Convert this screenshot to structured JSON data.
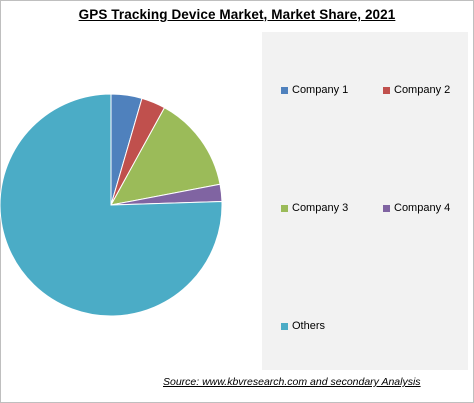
{
  "chart_data": {
    "type": "pie",
    "title": "GPS Tracking Device Market, Market Share, 2021",
    "series": [
      {
        "name": "Company 1",
        "value": 4.5,
        "color": "#4f81bd"
      },
      {
        "name": "Company 2",
        "value": 3.5,
        "color": "#c0504d"
      },
      {
        "name": "Company 3",
        "value": 14,
        "color": "#9bbb59"
      },
      {
        "name": "Company 4",
        "value": 2.5,
        "color": "#8064a2"
      },
      {
        "name": "Others",
        "value": 75.5,
        "color": "#4bacc6"
      }
    ],
    "legend_position": "right"
  },
  "source": "Source:  www.kbvresearch.com  and secondary Analysis"
}
